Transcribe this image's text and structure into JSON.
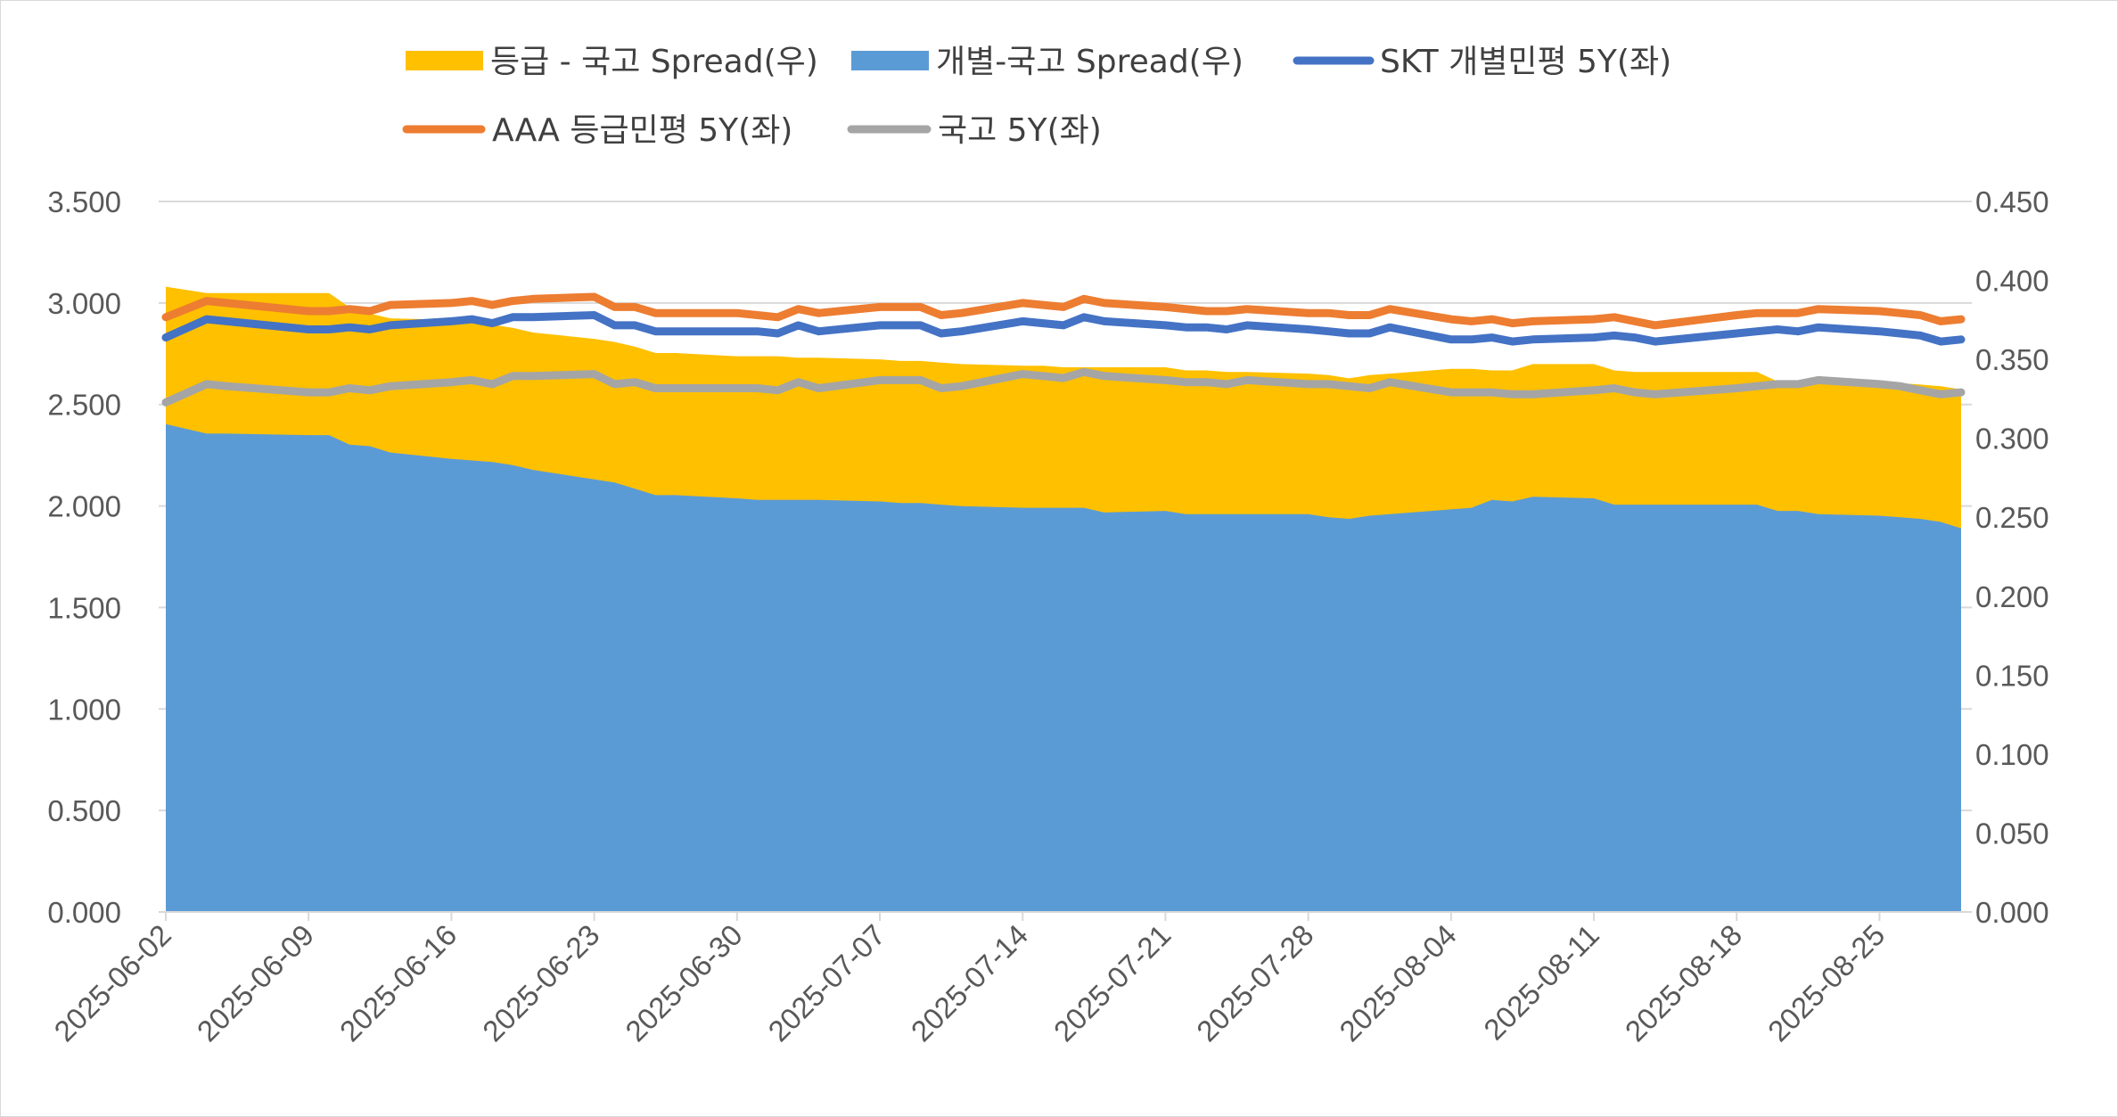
{
  "chart_data": {
    "type": "line",
    "title": "",
    "legend_placement": "top",
    "grid": true,
    "left_axis": {
      "min": 0,
      "max": 3.5,
      "step": 0.5,
      "ticks": [
        "0.000",
        "0.500",
        "1.000",
        "1.500",
        "2.000",
        "2.500",
        "3.000",
        "3.500"
      ]
    },
    "right_axis": {
      "min": 0,
      "max": 0.45,
      "step": 0.05,
      "ticks": [
        "0.000",
        "0.050",
        "0.100",
        "0.150",
        "0.200",
        "0.250",
        "0.300",
        "0.350",
        "0.400",
        "0.450"
      ]
    },
    "x_range": [
      "2025-06-02",
      "2025-08-29"
    ],
    "x_ticks": [
      "2025-06-02",
      "2025-06-09",
      "2025-06-16",
      "2025-06-23",
      "2025-06-30",
      "2025-07-07",
      "2025-07-14",
      "2025-07-21",
      "2025-07-28",
      "2025-08-04",
      "2025-08-11",
      "2025-08-18",
      "2025-08-25"
    ],
    "x": [
      "2025-06-02",
      "2025-06-04",
      "2025-06-05",
      "2025-06-09",
      "2025-06-10",
      "2025-06-11",
      "2025-06-12",
      "2025-06-13",
      "2025-06-16",
      "2025-06-17",
      "2025-06-18",
      "2025-06-19",
      "2025-06-20",
      "2025-06-23",
      "2025-06-24",
      "2025-06-25",
      "2025-06-26",
      "2025-06-27",
      "2025-06-30",
      "2025-07-01",
      "2025-07-02",
      "2025-07-03",
      "2025-07-04",
      "2025-07-07",
      "2025-07-08",
      "2025-07-09",
      "2025-07-10",
      "2025-07-11",
      "2025-07-14",
      "2025-07-15",
      "2025-07-16",
      "2025-07-17",
      "2025-07-18",
      "2025-07-21",
      "2025-07-22",
      "2025-07-23",
      "2025-07-24",
      "2025-07-25",
      "2025-07-28",
      "2025-07-29",
      "2025-07-30",
      "2025-07-31",
      "2025-08-01",
      "2025-08-04",
      "2025-08-05",
      "2025-08-06",
      "2025-08-07",
      "2025-08-08",
      "2025-08-11",
      "2025-08-12",
      "2025-08-13",
      "2025-08-14",
      "2025-08-18",
      "2025-08-19",
      "2025-08-20",
      "2025-08-21",
      "2025-08-22",
      "2025-08-25",
      "2025-08-26",
      "2025-08-27",
      "2025-08-28",
      "2025-08-29"
    ],
    "series": [
      {
        "name": "등급 - 국고 Spread(우)",
        "kind": "area",
        "axis": "right",
        "color": "#FFC000",
        "values": [
          0.396,
          0.392,
          0.392,
          0.392,
          0.392,
          0.383,
          0.379,
          0.376,
          0.375,
          0.374,
          0.372,
          0.37,
          0.367,
          0.363,
          0.361,
          0.358,
          0.354,
          0.354,
          0.352,
          0.352,
          0.352,
          0.351,
          0.351,
          0.35,
          0.349,
          0.349,
          0.348,
          0.347,
          0.346,
          0.346,
          0.345,
          0.345,
          0.345,
          0.345,
          0.343,
          0.343,
          0.342,
          0.342,
          0.341,
          0.34,
          0.338,
          0.34,
          0.341,
          0.344,
          0.344,
          0.343,
          0.343,
          0.347,
          0.347,
          0.343,
          0.342,
          0.342,
          0.342,
          0.342,
          0.336,
          0.335,
          0.336,
          0.336,
          0.335,
          0.334,
          0.333,
          0.331
        ]
      },
      {
        "name": "개별-국고 Spread(우)",
        "kind": "area",
        "axis": "right",
        "color": "#5B9BD5",
        "values": [
          0.309,
          0.303,
          0.303,
          0.302,
          0.302,
          0.296,
          0.295,
          0.291,
          0.287,
          0.286,
          0.285,
          0.283,
          0.28,
          0.274,
          0.272,
          0.268,
          0.264,
          0.264,
          0.262,
          0.261,
          0.261,
          0.261,
          0.261,
          0.26,
          0.259,
          0.259,
          0.258,
          0.257,
          0.256,
          0.256,
          0.256,
          0.256,
          0.253,
          0.254,
          0.252,
          0.252,
          0.252,
          0.252,
          0.252,
          0.25,
          0.249,
          0.251,
          0.252,
          0.255,
          0.256,
          0.261,
          0.26,
          0.263,
          0.262,
          0.258,
          0.258,
          0.258,
          0.258,
          0.258,
          0.254,
          0.254,
          0.252,
          0.251,
          0.25,
          0.249,
          0.247,
          0.243
        ]
      },
      {
        "name": "SKT 개별민평 5Y(좌)",
        "kind": "line",
        "axis": "left",
        "color": "#4472C4",
        "values": [
          2.83,
          2.92,
          2.91,
          2.87,
          2.87,
          2.88,
          2.87,
          2.89,
          2.91,
          2.92,
          2.9,
          2.93,
          2.93,
          2.94,
          2.89,
          2.89,
          2.86,
          2.86,
          2.86,
          2.86,
          2.85,
          2.89,
          2.86,
          2.89,
          2.89,
          2.89,
          2.85,
          2.86,
          2.91,
          2.9,
          2.89,
          2.93,
          2.91,
          2.89,
          2.88,
          2.88,
          2.87,
          2.89,
          2.87,
          2.86,
          2.85,
          2.85,
          2.88,
          2.82,
          2.82,
          2.83,
          2.81,
          2.82,
          2.83,
          2.84,
          2.83,
          2.81,
          2.85,
          2.86,
          2.87,
          2.86,
          2.88,
          2.86,
          2.85,
          2.84,
          2.81,
          2.82
        ]
      },
      {
        "name": "AAA 등급민평 5Y(좌)",
        "kind": "line",
        "axis": "left",
        "color": "#ED7D31",
        "values": [
          2.93,
          3.01,
          3.0,
          2.96,
          2.96,
          2.97,
          2.96,
          2.99,
          3.0,
          3.01,
          2.99,
          3.01,
          3.02,
          3.03,
          2.98,
          2.98,
          2.95,
          2.95,
          2.95,
          2.94,
          2.93,
          2.97,
          2.95,
          2.98,
          2.98,
          2.98,
          2.94,
          2.95,
          3.0,
          2.99,
          2.98,
          3.02,
          3.0,
          2.98,
          2.97,
          2.96,
          2.96,
          2.97,
          2.95,
          2.95,
          2.94,
          2.94,
          2.97,
          2.92,
          2.91,
          2.92,
          2.9,
          2.91,
          2.92,
          2.93,
          2.91,
          2.89,
          2.94,
          2.95,
          2.95,
          2.95,
          2.97,
          2.96,
          2.95,
          2.94,
          2.91,
          2.92
        ]
      },
      {
        "name": "국고 5Y(좌)",
        "kind": "line",
        "axis": "left",
        "color": "#A5A5A5",
        "values": [
          2.51,
          2.6,
          2.59,
          2.56,
          2.56,
          2.58,
          2.57,
          2.59,
          2.61,
          2.62,
          2.6,
          2.64,
          2.64,
          2.65,
          2.6,
          2.61,
          2.58,
          2.58,
          2.58,
          2.58,
          2.57,
          2.61,
          2.58,
          2.62,
          2.62,
          2.62,
          2.58,
          2.59,
          2.65,
          2.64,
          2.63,
          2.66,
          2.64,
          2.62,
          2.61,
          2.61,
          2.6,
          2.62,
          2.6,
          2.6,
          2.59,
          2.58,
          2.61,
          2.56,
          2.56,
          2.56,
          2.55,
          2.55,
          2.57,
          2.58,
          2.56,
          2.55,
          2.58,
          2.59,
          2.6,
          2.6,
          2.62,
          2.6,
          2.59,
          2.57,
          2.55,
          2.56
        ]
      }
    ]
  }
}
